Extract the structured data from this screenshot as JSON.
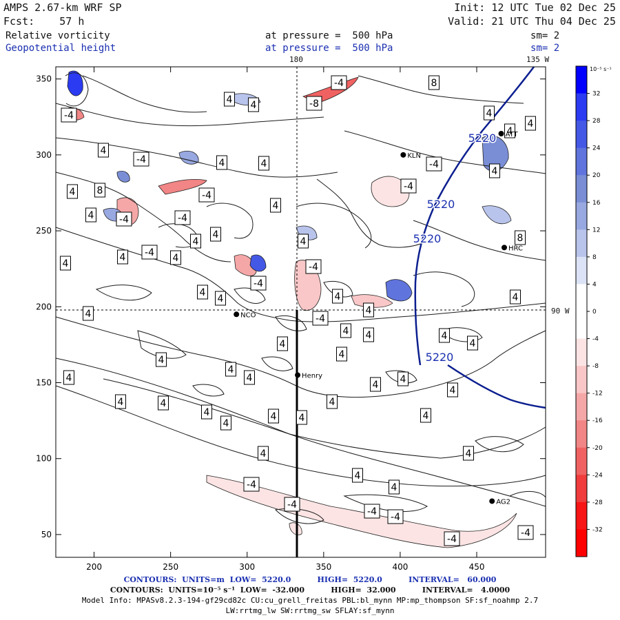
{
  "header": {
    "model": "AMPS 2.67-km WRF SP",
    "forecast": "Fcst:    57 h",
    "init": "Init: 12 UTC Tue 02 Dec 25",
    "valid": "Valid: 21 UTC Thu 04 Dec 25",
    "field1_name": "Relative vorticity",
    "field1_level": "at pressure =  500 hPa",
    "field1_smooth": "sm= 2",
    "field2_name": "Geopotential height",
    "field2_level": "at pressure =  500 hPa",
    "field2_smooth": "sm= 2"
  },
  "map": {
    "meridian_labels": {
      "lon180": "180",
      "lon135w": "135 W",
      "lon90w": "90 W"
    },
    "x_ticks": [
      200,
      250,
      300,
      350,
      400,
      450
    ],
    "y_ticks": [
      50,
      100,
      150,
      200,
      250,
      300,
      350
    ],
    "x_range": [
      175,
      495
    ],
    "y_range": [
      35,
      358
    ],
    "stations": [
      {
        "name": "KLN",
        "x": 402,
        "y": 300
      },
      {
        "name": "NCO",
        "x": 293,
        "y": 195
      },
      {
        "name": "Henry",
        "x": 333,
        "y": 155
      },
      {
        "name": "HRC",
        "x": 468,
        "y": 239
      },
      {
        "name": "AG2",
        "x": 460,
        "y": 72
      },
      {
        "name": "ATT",
        "x": 466,
        "y": 314
      }
    ],
    "height_labels": [
      "5220",
      "5220",
      "5220",
      "5220"
    ],
    "vorticity_labels": [
      "4",
      "-4",
      "8",
      "-8"
    ]
  },
  "colorbar": {
    "units": "10⁻⁵ s⁻¹",
    "ticks": [
      32,
      28,
      24,
      20,
      16,
      12,
      8,
      4,
      0,
      -4,
      -8,
      -12,
      -16,
      -20,
      -24,
      -28,
      -32
    ],
    "colors": [
      "#0000ff",
      "#2b3bf2",
      "#4458e6",
      "#5f74dd",
      "#7a8ed6",
      "#98a8e0",
      "#b9c4ec",
      "#dde3f6",
      "#ffffff",
      "#ffffff",
      "#fde4e4",
      "#f9c7c7",
      "#f5a7a7",
      "#f28585",
      "#f06262",
      "#f03c3c",
      "#f71515",
      "#ff0000"
    ]
  },
  "footer": {
    "line1": "CONTOURS:  UNITS=m  LOW=  5220.0          HIGH=  5220.0          INTERVAL=   60.000",
    "line2": "CONTOURS:  UNITS=10⁻⁵ s⁻¹  LOW=  -32.000          HIGH=  32.000          INTERVAL=   4.0000",
    "line3": "Model Info: MPASv8.2.3-194-gf29cd82c CU:cu_grell_freitas PBL:bl_mynn MP:mp_thompson SF:sf_noahmp 2.7",
    "line4": "LW:rrtmg_lw SW:rrtmg_sw SFLAY:sf_mynn"
  }
}
